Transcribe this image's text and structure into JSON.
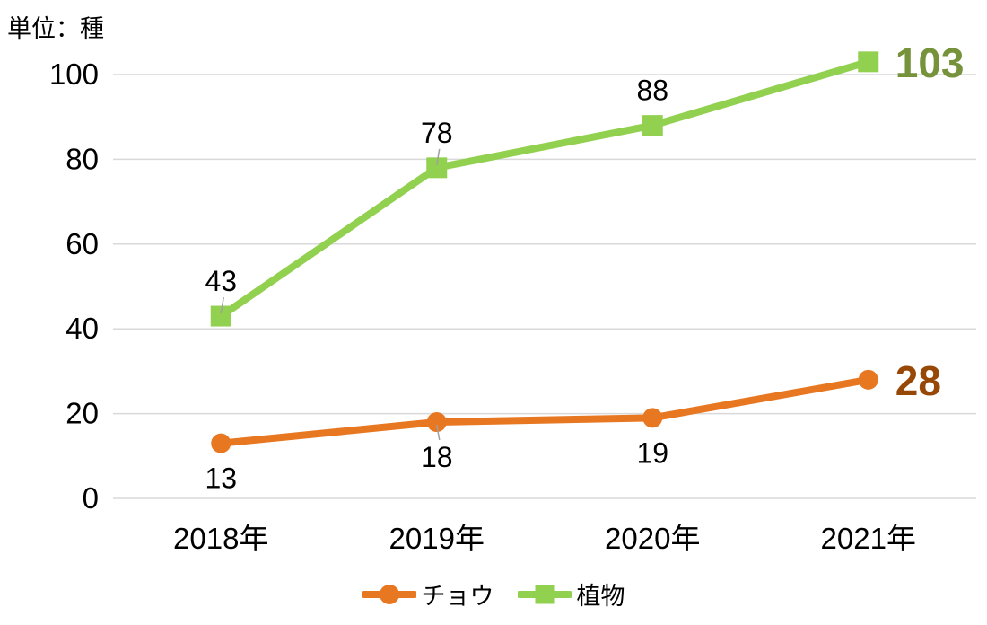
{
  "unit_label": "単位：種",
  "chart_data": {
    "type": "line",
    "title": "",
    "unit": "単位：種",
    "categories": [
      "2018年",
      "2019年",
      "2020年",
      "2021年"
    ],
    "series": [
      {
        "name": "チョウ",
        "values": [
          13,
          18,
          19,
          28
        ],
        "color": "#E87722",
        "marker": "circle",
        "label_position": "below",
        "last_label_color": "#974706",
        "label_leader_indices": [
          1
        ]
      },
      {
        "name": "植物",
        "values": [
          43,
          78,
          88,
          103
        ],
        "color": "#92D050",
        "marker": "square",
        "label_position": "above",
        "last_label_color": "#76933C",
        "label_leader_indices": [
          0,
          1
        ]
      }
    ],
    "xlabel": "",
    "ylabel": "",
    "ylim": [
      0,
      100
    ],
    "y_ticks": [
      0,
      20,
      40,
      60,
      80,
      100
    ],
    "grid": true,
    "gridline_color": "#D9D9D9",
    "leader_color": "#A0A0A0",
    "text_color": "#000000",
    "legend_position": "bottom"
  }
}
